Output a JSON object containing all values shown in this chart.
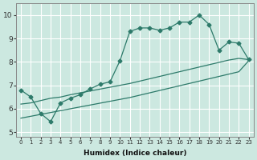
{
  "xlabel": "Humidex (Indice chaleur)",
  "ylabel": "",
  "xlim": [
    -0.5,
    23.5
  ],
  "ylim": [
    4.8,
    10.5
  ],
  "xticks": [
    0,
    1,
    2,
    3,
    4,
    5,
    6,
    7,
    8,
    9,
    10,
    11,
    12,
    13,
    14,
    15,
    16,
    17,
    18,
    19,
    20,
    21,
    22,
    23
  ],
  "yticks": [
    5,
    6,
    7,
    8,
    9,
    10
  ],
  "bg_color": "#cce8e0",
  "line_color": "#2d7a6a",
  "grid_color": "#ffffff",
  "line1_x": [
    0,
    1,
    2,
    3,
    4,
    5,
    6,
    7,
    8,
    9,
    10,
    11,
    12,
    13,
    14,
    15,
    16,
    17,
    18,
    19,
    20,
    21,
    22,
    23
  ],
  "line1_y": [
    6.8,
    6.5,
    5.8,
    5.45,
    6.25,
    6.45,
    6.6,
    6.85,
    7.05,
    7.15,
    8.05,
    9.3,
    9.45,
    9.45,
    9.35,
    9.45,
    9.7,
    9.7,
    10.0,
    9.6,
    8.5,
    8.85,
    8.8,
    8.1
  ],
  "line2_x": [
    0,
    1,
    2,
    3,
    4,
    5,
    6,
    7,
    8,
    9,
    10,
    11,
    12,
    13,
    14,
    15,
    16,
    17,
    18,
    19,
    20,
    21,
    22,
    23
  ],
  "line2_y": [
    6.2,
    6.25,
    6.35,
    6.45,
    6.5,
    6.6,
    6.68,
    6.76,
    6.84,
    6.92,
    7.0,
    7.08,
    7.18,
    7.28,
    7.38,
    7.48,
    7.58,
    7.68,
    7.78,
    7.88,
    7.98,
    8.08,
    8.15,
    8.1
  ],
  "line3_x": [
    0,
    1,
    2,
    3,
    4,
    5,
    6,
    7,
    8,
    9,
    10,
    11,
    12,
    13,
    14,
    15,
    16,
    17,
    18,
    19,
    20,
    21,
    22,
    23
  ],
  "line3_y": [
    5.6,
    5.68,
    5.76,
    5.84,
    5.92,
    6.0,
    6.08,
    6.16,
    6.24,
    6.32,
    6.4,
    6.48,
    6.58,
    6.68,
    6.78,
    6.88,
    6.98,
    7.08,
    7.18,
    7.28,
    7.38,
    7.48,
    7.58,
    8.05
  ]
}
